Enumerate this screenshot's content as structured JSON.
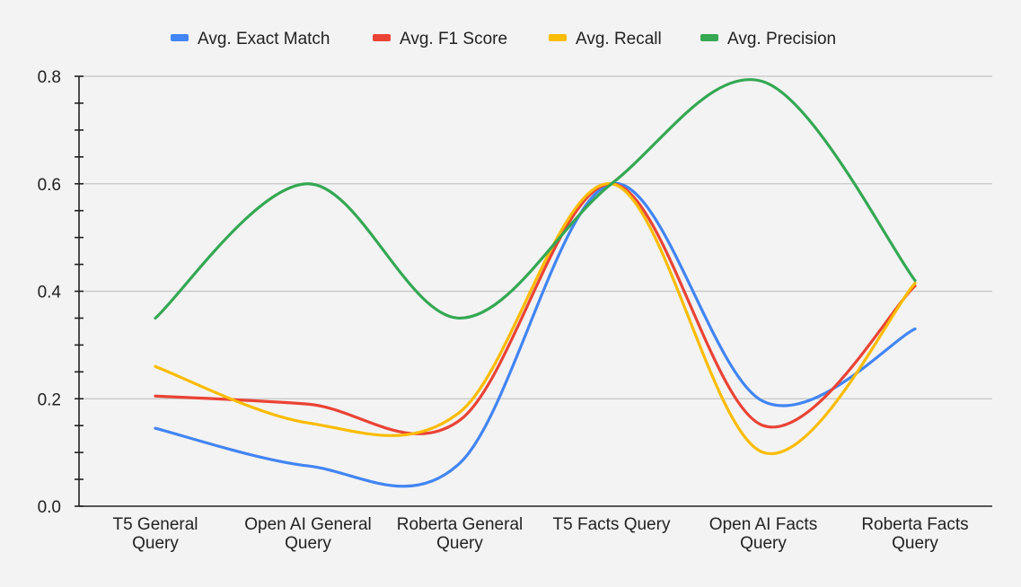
{
  "chart_data": {
    "type": "line",
    "title": "",
    "xlabel": "",
    "ylabel": "",
    "categories": [
      [
        "T5 General",
        "Query"
      ],
      [
        "Open AI General",
        "Query"
      ],
      [
        "Roberta General",
        "Query"
      ],
      [
        "T5 Facts Query"
      ],
      [
        "Open AI Facts",
        "Query"
      ],
      [
        "Roberta Facts",
        "Query"
      ]
    ],
    "ylim": [
      0,
      0.8
    ],
    "y_ticks": [
      "0.0",
      "0.2",
      "0.4",
      "0.6",
      "0.8"
    ],
    "grid": true,
    "smooth": true,
    "legend_position": "top",
    "series": [
      {
        "name": "Avg. Exact Match",
        "color": "#4285f4",
        "values": [
          0.145,
          0.075,
          0.08,
          0.6,
          0.195,
          0.33
        ]
      },
      {
        "name": "Avg. F1 Score",
        "color": "#ea4335",
        "values": [
          0.205,
          0.19,
          0.16,
          0.6,
          0.15,
          0.41
        ]
      },
      {
        "name": "Avg. Recall",
        "color": "#fbbc04",
        "values": [
          0.26,
          0.155,
          0.175,
          0.6,
          0.1,
          0.415
        ]
      },
      {
        "name": "Avg. Precision",
        "color": "#34a853",
        "values": [
          0.35,
          0.6,
          0.35,
          0.6,
          0.79,
          0.42
        ]
      }
    ]
  }
}
